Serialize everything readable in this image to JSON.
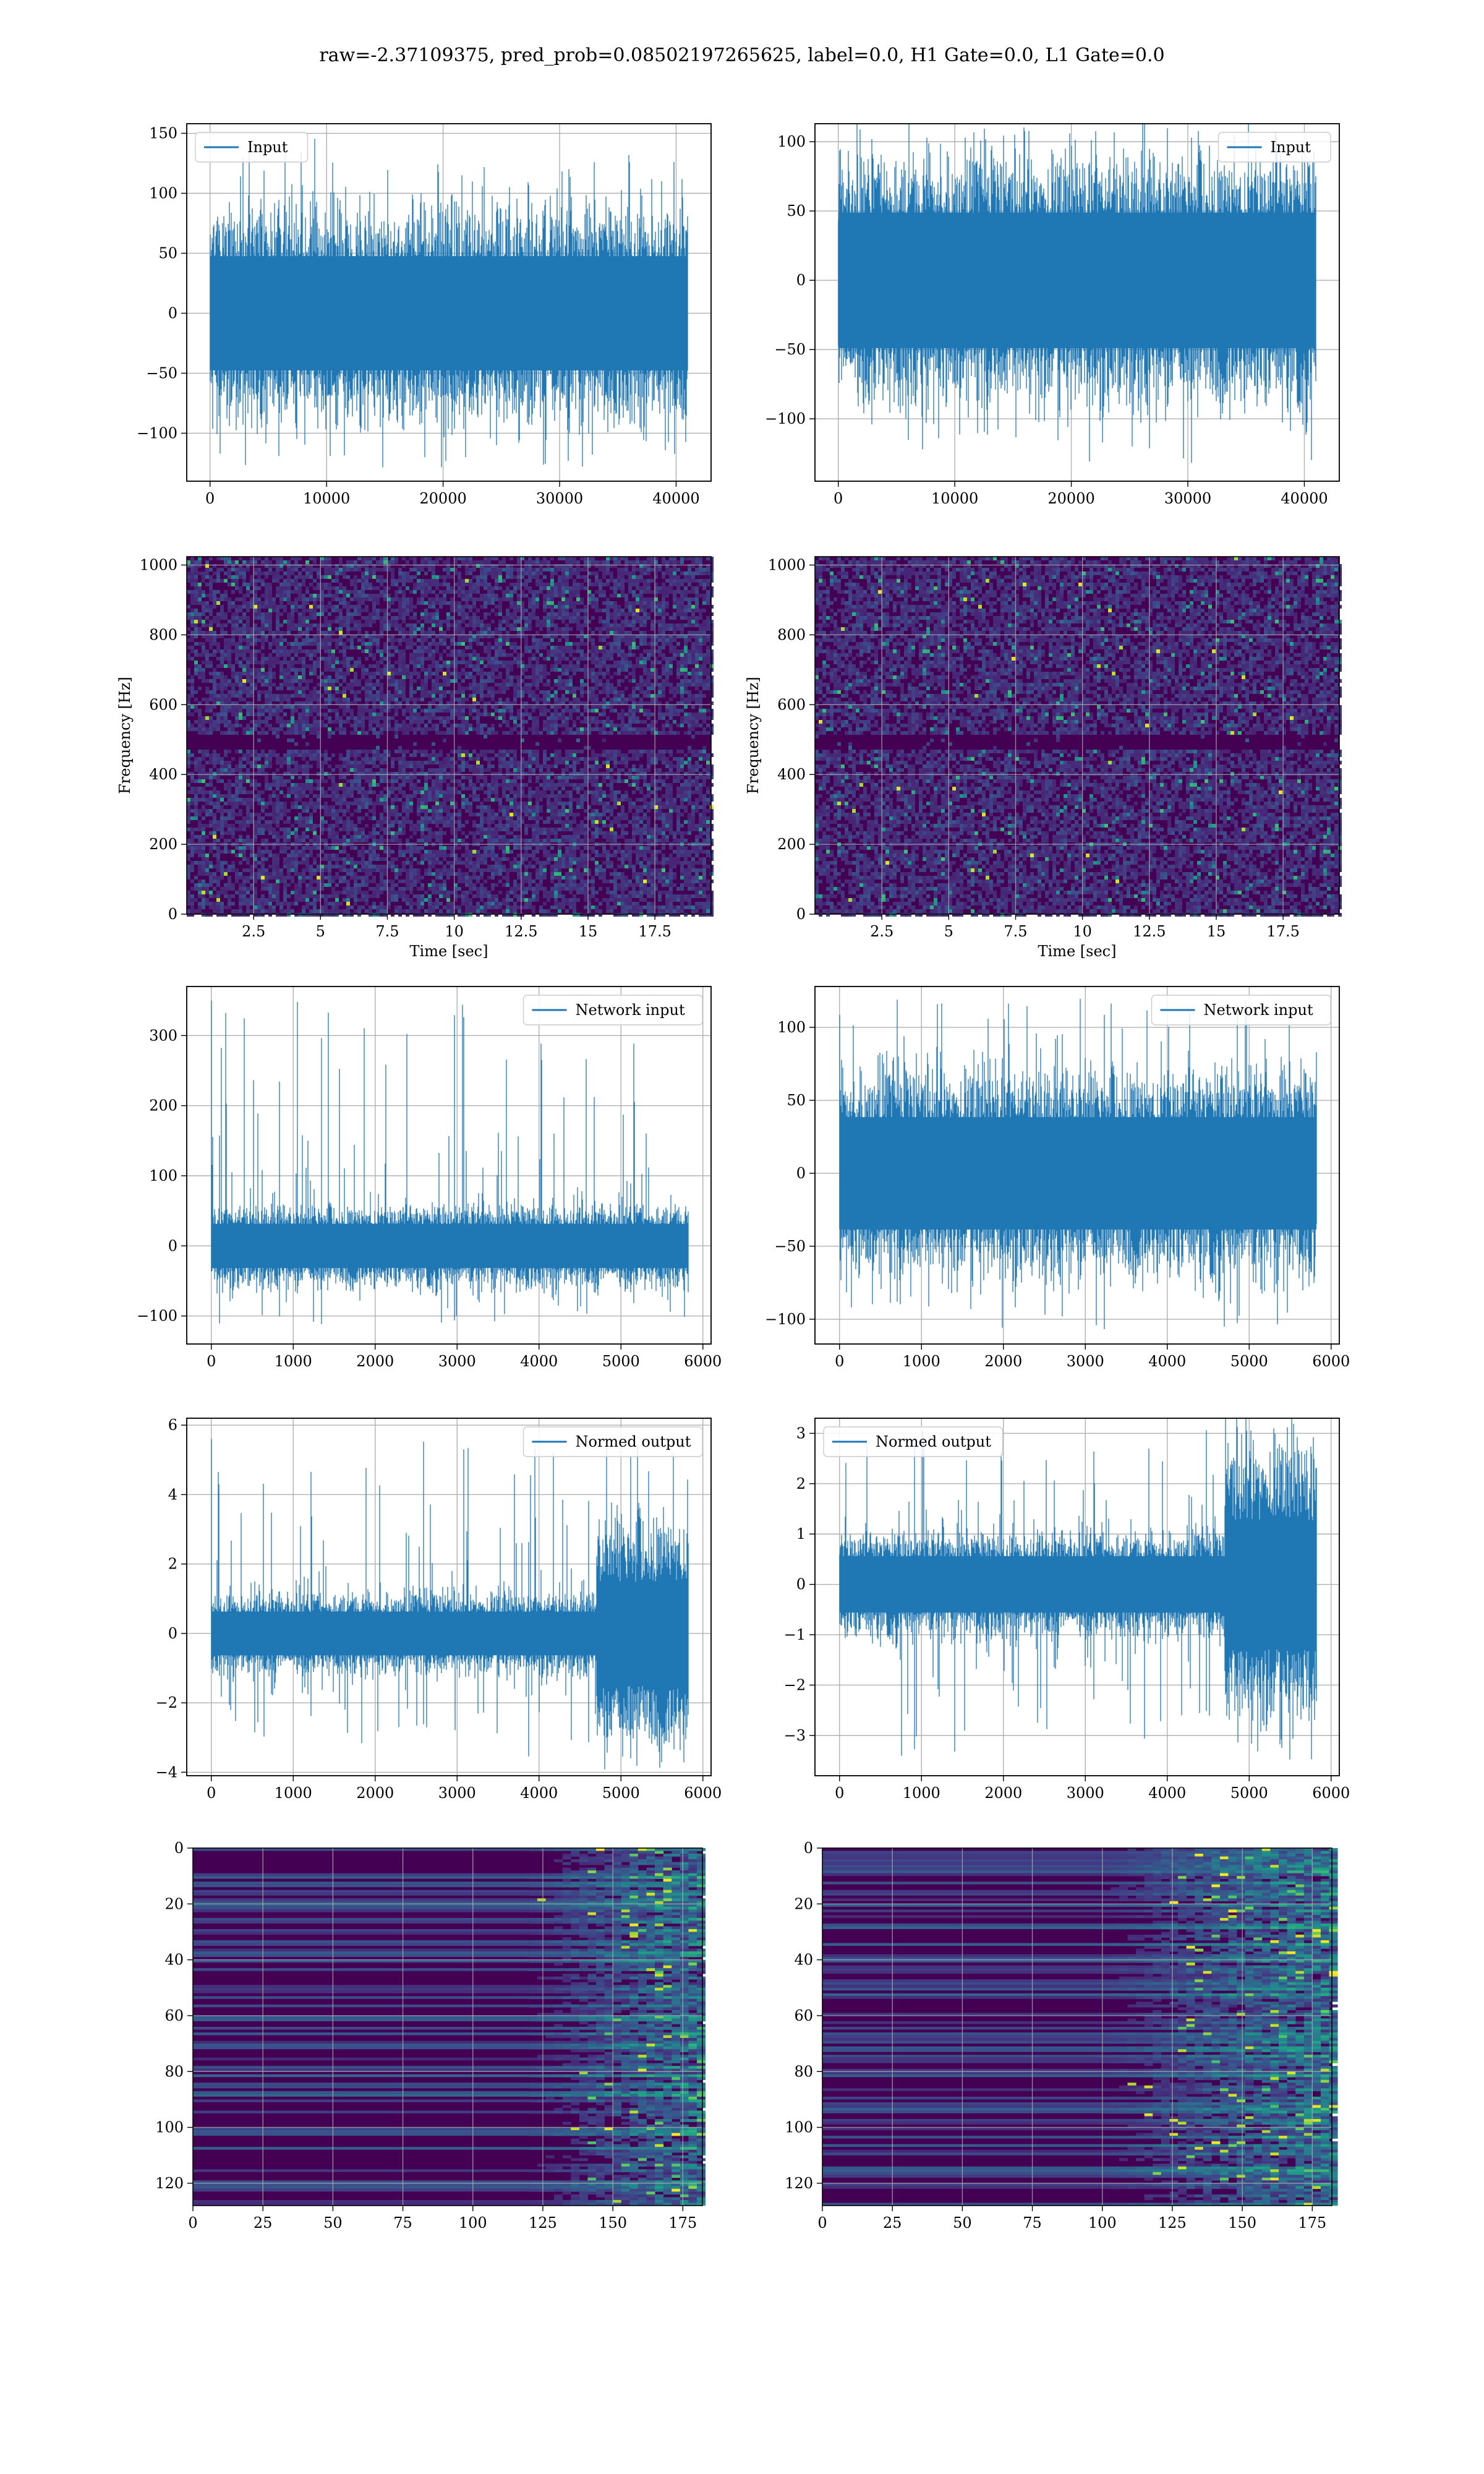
{
  "figure": {
    "suptitle": "raw=-2.37109375, pred_prob=0.08502197265625, label=0.0, H1 Gate=0.0, L1 Gate=0.0",
    "colors": {
      "line": "#1f77b4",
      "grid": "#b0b0b0",
      "viridis_dark": "#440154"
    }
  },
  "chart_data": [
    {
      "panel": "row1-left",
      "type": "line",
      "title": "",
      "xlabel": "",
      "ylabel": "",
      "legend": {
        "label": "Input",
        "loc": "upper left"
      },
      "xlim": [
        -2000,
        43000
      ],
      "ylim": [
        -140,
        158
      ],
      "xticks": [
        0,
        10000,
        20000,
        30000,
        40000
      ],
      "yticks": [
        -100,
        -50,
        0,
        50,
        100,
        150
      ],
      "series": [
        {
          "n_points": 40960,
          "core_band": [
            -68,
            68
          ],
          "max": 148,
          "min": -132,
          "color": "#1f77b4"
        }
      ],
      "grid": true
    },
    {
      "panel": "row1-right",
      "type": "line",
      "title": "",
      "xlabel": "",
      "ylabel": "",
      "legend": {
        "label": "Input",
        "loc": "upper right"
      },
      "xlim": [
        -2000,
        43000
      ],
      "ylim": [
        -145,
        113
      ],
      "xticks": [
        0,
        10000,
        20000,
        30000,
        40000
      ],
      "yticks": [
        -100,
        -50,
        0,
        50,
        100
      ],
      "series": [
        {
          "n_points": 40960,
          "core_band": [
            -70,
            70
          ],
          "max": 110,
          "min": -132,
          "color": "#1f77b4"
        }
      ],
      "grid": true
    },
    {
      "panel": "row2-left",
      "type": "heatmap",
      "title": "",
      "xlabel": "Time [sec]",
      "ylabel": "Frequency [Hz]",
      "xlim": [
        0,
        19.6
      ],
      "ylim": [
        0,
        1024
      ],
      "xticks": [
        2.5,
        5.0,
        7.5,
        10.0,
        12.5,
        15.0,
        17.5
      ],
      "yticks": [
        0,
        200,
        400,
        600,
        800,
        1000
      ],
      "colormap": "viridis",
      "dark_band_hz": [
        480,
        520
      ],
      "grid": true
    },
    {
      "panel": "row2-right",
      "type": "heatmap",
      "title": "",
      "xlabel": "Time [sec]",
      "ylabel": "Frequency [Hz]",
      "xlim": [
        0,
        19.6
      ],
      "ylim": [
        0,
        1024
      ],
      "xticks": [
        2.5,
        5.0,
        7.5,
        10.0,
        12.5,
        15.0,
        17.5
      ],
      "yticks": [
        0,
        200,
        400,
        600,
        800,
        1000
      ],
      "colormap": "viridis",
      "dark_band_hz": [
        480,
        520
      ],
      "grid": true
    },
    {
      "panel": "row3-left",
      "type": "line",
      "title": "",
      "xlabel": "",
      "ylabel": "",
      "legend": {
        "label": "Network input",
        "loc": "upper right"
      },
      "xlim": [
        -300,
        6100
      ],
      "ylim": [
        -140,
        370
      ],
      "xticks": [
        0,
        1000,
        2000,
        3000,
        4000,
        5000,
        6000
      ],
      "yticks": [
        -100,
        0,
        100,
        200,
        300
      ],
      "series": [
        {
          "n_points": 5820,
          "core_band": [
            -45,
            45
          ],
          "max": 350,
          "min": -112,
          "spike_x": 0,
          "spike_y": 350,
          "color": "#1f77b4"
        }
      ],
      "grid": true
    },
    {
      "panel": "row3-right",
      "type": "line",
      "title": "",
      "xlabel": "",
      "ylabel": "",
      "legend": {
        "label": "Network input",
        "loc": "upper right"
      },
      "xlim": [
        -300,
        6100
      ],
      "ylim": [
        -117,
        128
      ],
      "xticks": [
        0,
        1000,
        2000,
        3000,
        4000,
        5000,
        6000
      ],
      "yticks": [
        -100,
        -50,
        0,
        50,
        100
      ],
      "series": [
        {
          "n_points": 5820,
          "core_band": [
            -55,
            55
          ],
          "max": 120,
          "min": -107,
          "color": "#1f77b4"
        }
      ],
      "grid": true
    },
    {
      "panel": "row4-left",
      "type": "line",
      "title": "",
      "xlabel": "",
      "ylabel": "",
      "legend": {
        "label": "Normed output",
        "loc": "upper right"
      },
      "xlim": [
        -300,
        6100
      ],
      "ylim": [
        -4.1,
        6.2
      ],
      "xticks": [
        0,
        1000,
        2000,
        3000,
        4000,
        5000,
        6000
      ],
      "yticks": [
        -4,
        -2,
        0,
        2,
        4,
        6
      ],
      "series": [
        {
          "n_points": 5820,
          "core_band": [
            -0.9,
            0.9
          ],
          "burst_start_x": 4700,
          "burst_band": [
            -2.7,
            2.7
          ],
          "max": 5.6,
          "min": -3.6,
          "spike_x": 0,
          "spike_y": 5.6,
          "color": "#1f77b4"
        }
      ],
      "grid": true
    },
    {
      "panel": "row4-right",
      "type": "line",
      "title": "",
      "xlabel": "",
      "ylabel": "",
      "legend": {
        "label": "Normed output",
        "loc": "upper left"
      },
      "xlim": [
        -300,
        6100
      ],
      "ylim": [
        -3.8,
        3.3
      ],
      "xticks": [
        0,
        1000,
        2000,
        3000,
        4000,
        5000,
        6000
      ],
      "yticks": [
        -3,
        -2,
        -1,
        0,
        1,
        2,
        3
      ],
      "series": [
        {
          "n_points": 5820,
          "core_band": [
            -0.8,
            0.8
          ],
          "burst_start_x": 4700,
          "burst_band": [
            -2.3,
            2.3
          ],
          "max": 3.1,
          "min": -3.5,
          "color": "#1f77b4"
        }
      ],
      "grid": true
    },
    {
      "panel": "row5-left",
      "type": "heatmap",
      "title": "",
      "xlabel": "",
      "ylabel": "",
      "xlim": [
        0,
        182
      ],
      "ylim": [
        128,
        0
      ],
      "xticks": [
        0,
        25,
        50,
        75,
        100,
        125,
        150,
        175
      ],
      "yticks": [
        0,
        20,
        40,
        60,
        80,
        100,
        120
      ],
      "colormap": "viridis",
      "rows": 128,
      "cols": 182,
      "activity_start_col": 120,
      "grid": true
    },
    {
      "panel": "row5-right",
      "type": "heatmap",
      "title": "",
      "xlabel": "",
      "ylabel": "",
      "xlim": [
        0,
        182
      ],
      "ylim": [
        128,
        0
      ],
      "xticks": [
        0,
        25,
        50,
        75,
        100,
        125,
        150,
        175
      ],
      "yticks": [
        0,
        20,
        40,
        60,
        80,
        100,
        120
      ],
      "colormap": "viridis",
      "rows": 128,
      "cols": 182,
      "activity_start_col": 100,
      "grid": true
    }
  ]
}
